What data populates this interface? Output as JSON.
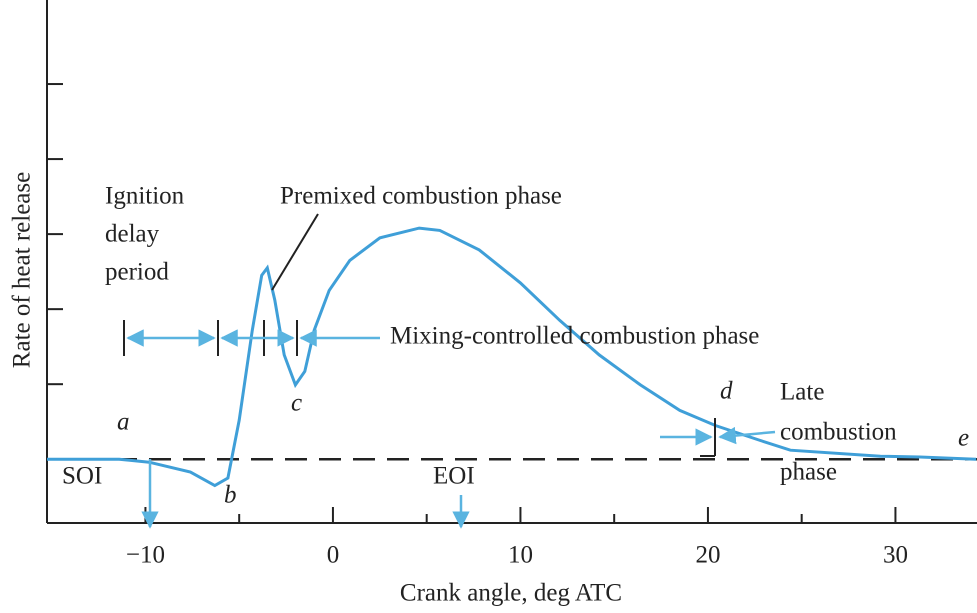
{
  "chart_data": {
    "type": "line",
    "x_label": "Crank angle, deg ATC",
    "y_label": "Rate of heat release",
    "xlim": [
      -15.25,
      34.35
    ],
    "ylim": [
      -0.85,
      6.12
    ],
    "xticks": [
      {
        "value": -10,
        "label": "−10"
      },
      0,
      10,
      20,
      30
    ],
    "xminor_ticks": [
      -5,
      5,
      15,
      25
    ],
    "yticks": [
      1,
      2,
      3,
      4,
      5
    ],
    "series": [
      {
        "color": "#3f9fd8",
        "x": [
          -15.25,
          -11.4,
          -9.8,
          -7.6,
          -6.3,
          -5.6,
          -5.0,
          -4.3,
          -3.8,
          -3.5,
          -3.1,
          -2.6,
          -2.0,
          -1.5,
          -1.0,
          -0.2,
          0.9,
          2.5,
          4.6,
          5.7,
          7.8,
          10.0,
          12.1,
          14.2,
          16.4,
          18.5,
          20.4,
          22.8,
          24.4,
          29.2,
          31.3,
          34.3
        ],
        "values": [
          0,
          0,
          -0.04,
          -0.17,
          -0.35,
          -0.25,
          0.52,
          1.72,
          2.45,
          2.55,
          2.12,
          1.39,
          0.99,
          1.17,
          1.72,
          2.25,
          2.65,
          2.95,
          3.08,
          3.05,
          2.79,
          2.35,
          1.85,
          1.39,
          0.99,
          0.65,
          0.45,
          0.25,
          0.12,
          0.04,
          0.03,
          0
        ]
      }
    ],
    "annotations": {
      "ignition_delay": [
        "Ignition",
        "delay",
        "period"
      ],
      "premixed": "Premixed combustion phase",
      "mixing": "Mixing-controlled combustion phase",
      "late": [
        "Late",
        "combustion",
        "phase"
      ],
      "points": [
        "a",
        "b",
        "c",
        "d",
        "e"
      ],
      "soi": "SOI",
      "eoi": "EOI"
    }
  }
}
